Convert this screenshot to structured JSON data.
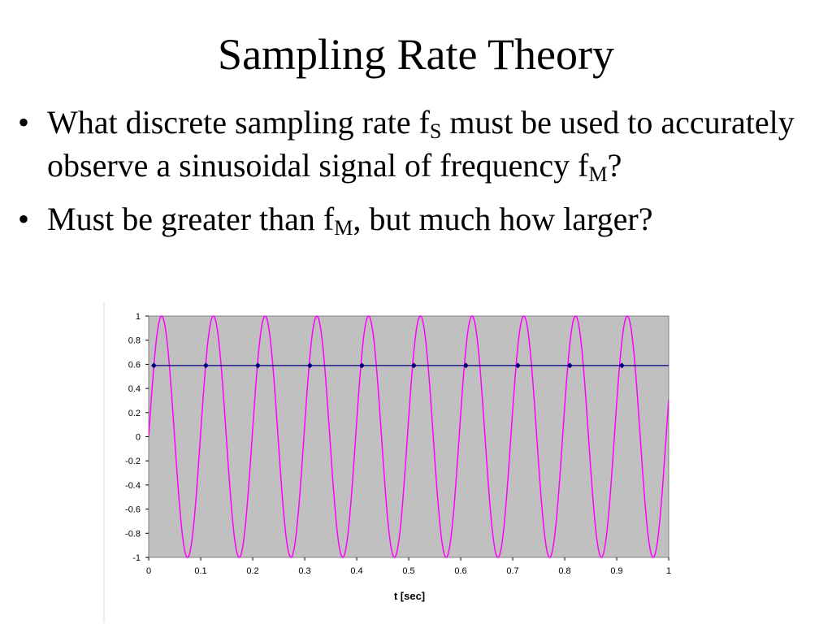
{
  "slide": {
    "title": "Sampling Rate Theory",
    "bullets": [
      {
        "parts": [
          "What discrete sampling rate f",
          "S",
          " must be used to accurately observe a sinusoidal signal of frequency f",
          "M",
          "?"
        ]
      },
      {
        "parts": [
          "Must be greater than f",
          "M",
          ", but much how larger?"
        ]
      }
    ]
  },
  "chart_data": {
    "type": "line",
    "title": "",
    "xlabel": "t [sec]",
    "ylabel": "",
    "xlim": [
      0,
      1
    ],
    "ylim": [
      -1,
      1
    ],
    "x_ticks": [
      "0",
      "0.1",
      "0.2",
      "0.3",
      "0.4",
      "0.5",
      "0.6",
      "0.7",
      "0.8",
      "0.9",
      "1"
    ],
    "y_ticks": [
      "1",
      "0.8",
      "0.6",
      "0.4",
      "0.2",
      "0",
      "-0.2",
      "-0.4",
      "-0.6",
      "-0.8",
      "-1"
    ],
    "plot_background": "#c0c0c0",
    "grid": false,
    "legend": "none",
    "series": [
      {
        "style": "continuous sinusoid",
        "color": "#ff00ff",
        "frequency_hz": 10.05,
        "amplitude": 1
      },
      {
        "style": "sampled points",
        "color": "#000080",
        "x": [
          0.01,
          0.11,
          0.21,
          0.31,
          0.41,
          0.51,
          0.61,
          0.71,
          0.81,
          0.91
        ],
        "y": [
          0.59,
          0.59,
          0.59,
          0.59,
          0.59,
          0.59,
          0.59,
          0.59,
          0.59,
          0.59
        ],
        "line_extends_to_x": 1
      }
    ]
  }
}
